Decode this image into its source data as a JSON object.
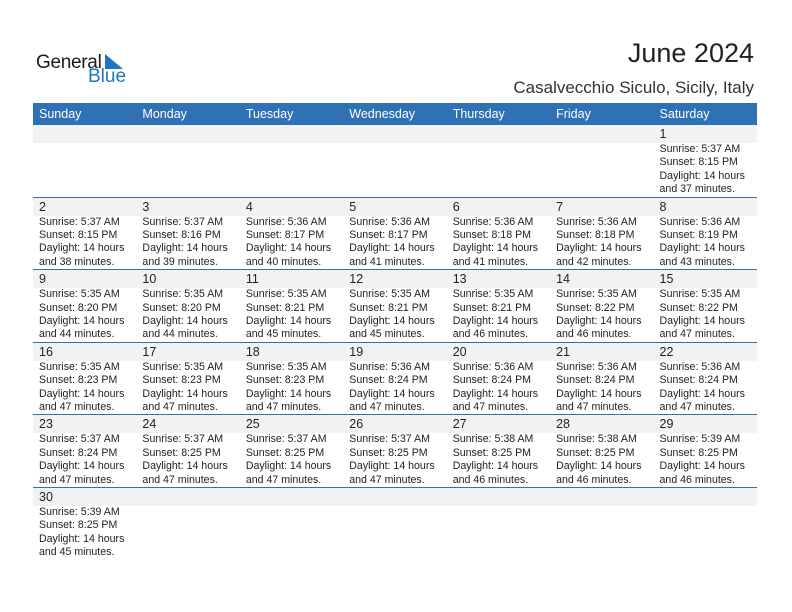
{
  "logo": {
    "word1": "General",
    "word2": "Blue",
    "accent": "#1f75c0"
  },
  "title": "June 2024",
  "subtitle": "Casalvecchio Siculo, Sicily, Italy",
  "header_color": "#2e72b5",
  "weekdays": [
    "Sunday",
    "Monday",
    "Tuesday",
    "Wednesday",
    "Thursday",
    "Friday",
    "Saturday"
  ],
  "leading_blank_days": 6,
  "days": [
    {
      "day": "1",
      "sunrise": "Sunrise: 5:37 AM",
      "sunset": "Sunset: 8:15 PM",
      "daylight": "Daylight: 14 hours",
      "minutes": "and 37 minutes."
    },
    {
      "day": "2",
      "sunrise": "Sunrise: 5:37 AM",
      "sunset": "Sunset: 8:15 PM",
      "daylight": "Daylight: 14 hours",
      "minutes": "and 38 minutes."
    },
    {
      "day": "3",
      "sunrise": "Sunrise: 5:37 AM",
      "sunset": "Sunset: 8:16 PM",
      "daylight": "Daylight: 14 hours",
      "minutes": "and 39 minutes."
    },
    {
      "day": "4",
      "sunrise": "Sunrise: 5:36 AM",
      "sunset": "Sunset: 8:17 PM",
      "daylight": "Daylight: 14 hours",
      "minutes": "and 40 minutes."
    },
    {
      "day": "5",
      "sunrise": "Sunrise: 5:36 AM",
      "sunset": "Sunset: 8:17 PM",
      "daylight": "Daylight: 14 hours",
      "minutes": "and 41 minutes."
    },
    {
      "day": "6",
      "sunrise": "Sunrise: 5:36 AM",
      "sunset": "Sunset: 8:18 PM",
      "daylight": "Daylight: 14 hours",
      "minutes": "and 41 minutes."
    },
    {
      "day": "7",
      "sunrise": "Sunrise: 5:36 AM",
      "sunset": "Sunset: 8:18 PM",
      "daylight": "Daylight: 14 hours",
      "minutes": "and 42 minutes."
    },
    {
      "day": "8",
      "sunrise": "Sunrise: 5:36 AM",
      "sunset": "Sunset: 8:19 PM",
      "daylight": "Daylight: 14 hours",
      "minutes": "and 43 minutes."
    },
    {
      "day": "9",
      "sunrise": "Sunrise: 5:35 AM",
      "sunset": "Sunset: 8:20 PM",
      "daylight": "Daylight: 14 hours",
      "minutes": "and 44 minutes."
    },
    {
      "day": "10",
      "sunrise": "Sunrise: 5:35 AM",
      "sunset": "Sunset: 8:20 PM",
      "daylight": "Daylight: 14 hours",
      "minutes": "and 44 minutes."
    },
    {
      "day": "11",
      "sunrise": "Sunrise: 5:35 AM",
      "sunset": "Sunset: 8:21 PM",
      "daylight": "Daylight: 14 hours",
      "minutes": "and 45 minutes."
    },
    {
      "day": "12",
      "sunrise": "Sunrise: 5:35 AM",
      "sunset": "Sunset: 8:21 PM",
      "daylight": "Daylight: 14 hours",
      "minutes": "and 45 minutes."
    },
    {
      "day": "13",
      "sunrise": "Sunrise: 5:35 AM",
      "sunset": "Sunset: 8:21 PM",
      "daylight": "Daylight: 14 hours",
      "minutes": "and 46 minutes."
    },
    {
      "day": "14",
      "sunrise": "Sunrise: 5:35 AM",
      "sunset": "Sunset: 8:22 PM",
      "daylight": "Daylight: 14 hours",
      "minutes": "and 46 minutes."
    },
    {
      "day": "15",
      "sunrise": "Sunrise: 5:35 AM",
      "sunset": "Sunset: 8:22 PM",
      "daylight": "Daylight: 14 hours",
      "minutes": "and 47 minutes."
    },
    {
      "day": "16",
      "sunrise": "Sunrise: 5:35 AM",
      "sunset": "Sunset: 8:23 PM",
      "daylight": "Daylight: 14 hours",
      "minutes": "and 47 minutes."
    },
    {
      "day": "17",
      "sunrise": "Sunrise: 5:35 AM",
      "sunset": "Sunset: 8:23 PM",
      "daylight": "Daylight: 14 hours",
      "minutes": "and 47 minutes."
    },
    {
      "day": "18",
      "sunrise": "Sunrise: 5:35 AM",
      "sunset": "Sunset: 8:23 PM",
      "daylight": "Daylight: 14 hours",
      "minutes": "and 47 minutes."
    },
    {
      "day": "19",
      "sunrise": "Sunrise: 5:36 AM",
      "sunset": "Sunset: 8:24 PM",
      "daylight": "Daylight: 14 hours",
      "minutes": "and 47 minutes."
    },
    {
      "day": "20",
      "sunrise": "Sunrise: 5:36 AM",
      "sunset": "Sunset: 8:24 PM",
      "daylight": "Daylight: 14 hours",
      "minutes": "and 47 minutes."
    },
    {
      "day": "21",
      "sunrise": "Sunrise: 5:36 AM",
      "sunset": "Sunset: 8:24 PM",
      "daylight": "Daylight: 14 hours",
      "minutes": "and 47 minutes."
    },
    {
      "day": "22",
      "sunrise": "Sunrise: 5:36 AM",
      "sunset": "Sunset: 8:24 PM",
      "daylight": "Daylight: 14 hours",
      "minutes": "and 47 minutes."
    },
    {
      "day": "23",
      "sunrise": "Sunrise: 5:37 AM",
      "sunset": "Sunset: 8:24 PM",
      "daylight": "Daylight: 14 hours",
      "minutes": "and 47 minutes."
    },
    {
      "day": "24",
      "sunrise": "Sunrise: 5:37 AM",
      "sunset": "Sunset: 8:25 PM",
      "daylight": "Daylight: 14 hours",
      "minutes": "and 47 minutes."
    },
    {
      "day": "25",
      "sunrise": "Sunrise: 5:37 AM",
      "sunset": "Sunset: 8:25 PM",
      "daylight": "Daylight: 14 hours",
      "minutes": "and 47 minutes."
    },
    {
      "day": "26",
      "sunrise": "Sunrise: 5:37 AM",
      "sunset": "Sunset: 8:25 PM",
      "daylight": "Daylight: 14 hours",
      "minutes": "and 47 minutes."
    },
    {
      "day": "27",
      "sunrise": "Sunrise: 5:38 AM",
      "sunset": "Sunset: 8:25 PM",
      "daylight": "Daylight: 14 hours",
      "minutes": "and 46 minutes."
    },
    {
      "day": "28",
      "sunrise": "Sunrise: 5:38 AM",
      "sunset": "Sunset: 8:25 PM",
      "daylight": "Daylight: 14 hours",
      "minutes": "and 46 minutes."
    },
    {
      "day": "29",
      "sunrise": "Sunrise: 5:39 AM",
      "sunset": "Sunset: 8:25 PM",
      "daylight": "Daylight: 14 hours",
      "minutes": "and 46 minutes."
    },
    {
      "day": "30",
      "sunrise": "Sunrise: 5:39 AM",
      "sunset": "Sunset: 8:25 PM",
      "daylight": "Daylight: 14 hours",
      "minutes": "and 45 minutes."
    }
  ]
}
